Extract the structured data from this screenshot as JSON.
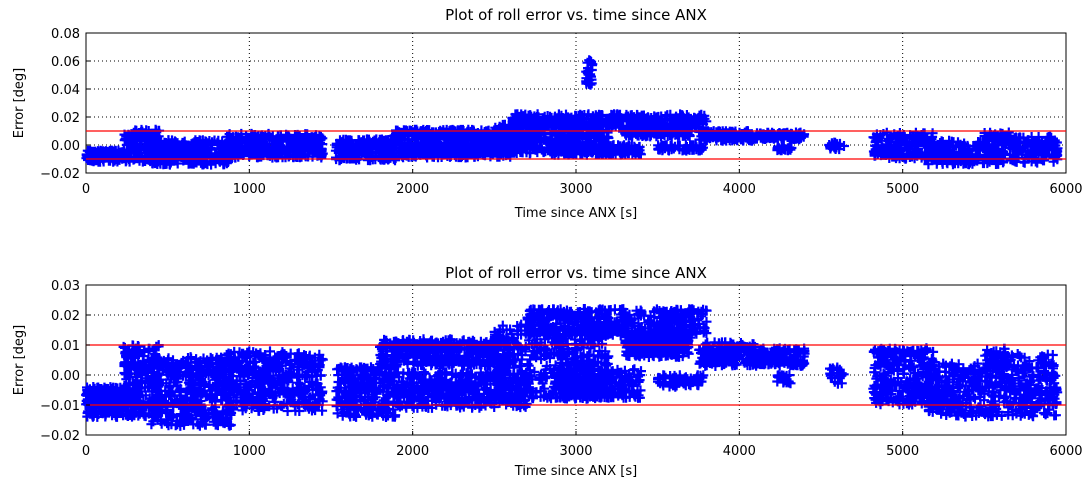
{
  "chart_data": [
    {
      "type": "scatter",
      "title": "Plot of roll error vs. time since ANX",
      "xlabel": "Time since ANX [s]",
      "ylabel": "Error [deg]",
      "xlim": [
        0,
        6000
      ],
      "ylim": [
        -0.02,
        0.08
      ],
      "xticks": [
        0,
        1000,
        2000,
        3000,
        4000,
        5000,
        6000
      ],
      "yticks": [
        -0.02,
        0.0,
        0.02,
        0.04,
        0.06,
        0.08
      ],
      "xtick_labels": [
        "0",
        "1000",
        "2000",
        "3000",
        "4000",
        "5000",
        "6000"
      ],
      "ytick_labels": [
        "−0.02",
        "0.00",
        "0.02",
        "0.04",
        "0.06",
        "0.08"
      ],
      "grid": "dotted",
      "threshold_lines": [
        0.01,
        -0.01
      ],
      "colors": {
        "series": "#0000ff",
        "threshold": "#ff0000",
        "grid": "#000000"
      },
      "marker": "plus",
      "clusters": [
        {
          "x0": 0,
          "x1": 250,
          "y0": -0.012,
          "y1": -0.004,
          "n": 160
        },
        {
          "x0": 230,
          "x1": 450,
          "y0": -0.012,
          "y1": 0.011,
          "n": 160
        },
        {
          "x0": 400,
          "x1": 900,
          "y0": -0.014,
          "y1": 0.004,
          "n": 320
        },
        {
          "x0": 850,
          "x1": 1450,
          "y0": -0.009,
          "y1": 0.008,
          "n": 340
        },
        {
          "x0": 1530,
          "x1": 1900,
          "y0": -0.011,
          "y1": 0.004,
          "n": 220
        },
        {
          "x0": 1880,
          "x1": 2600,
          "y0": 0.003,
          "y1": 0.011,
          "n": 320
        },
        {
          "x0": 1900,
          "x1": 2600,
          "y0": -0.009,
          "y1": 0.002,
          "n": 300
        },
        {
          "x0": 2500,
          "x1": 3200,
          "y0": -0.006,
          "y1": 0.015,
          "n": 360
        },
        {
          "x0": 2600,
          "x1": 3800,
          "y0": 0.012,
          "y1": 0.022,
          "n": 380
        },
        {
          "x0": 2850,
          "x1": 3400,
          "y0": -0.007,
          "y1": 0.0,
          "n": 200
        },
        {
          "x0": 3300,
          "x1": 3700,
          "y0": 0.006,
          "y1": 0.014,
          "n": 200
        },
        {
          "x0": 3500,
          "x1": 3780,
          "y0": -0.004,
          "y1": 0.0,
          "n": 60
        },
        {
          "x0": 3750,
          "x1": 4100,
          "y0": 0.003,
          "y1": 0.01,
          "n": 120
        },
        {
          "x0": 4100,
          "x1": 4400,
          "y0": 0.004,
          "y1": 0.009,
          "n": 100
        },
        {
          "x0": 4230,
          "x1": 4320,
          "y0": -0.004,
          "y1": -0.001,
          "n": 20
        },
        {
          "x0": 4550,
          "x1": 4650,
          "y0": -0.003,
          "y1": 0.002,
          "n": 20
        },
        {
          "x0": 4820,
          "x1": 5200,
          "y0": -0.01,
          "y1": 0.009,
          "n": 200
        },
        {
          "x0": 5150,
          "x1": 5600,
          "y0": -0.014,
          "y1": 0.003,
          "n": 200
        },
        {
          "x0": 5500,
          "x1": 5650,
          "y0": 0.002,
          "y1": 0.009,
          "n": 40
        },
        {
          "x0": 5600,
          "x1": 5950,
          "y0": -0.013,
          "y1": 0.006,
          "n": 160
        },
        {
          "x0": 3060,
          "x1": 3100,
          "y0": 0.043,
          "y1": 0.061,
          "n": 24
        }
      ]
    },
    {
      "type": "scatter",
      "title": "Plot of roll error vs. time since ANX",
      "xlabel": "Time since ANX [s]",
      "ylabel": "Error [deg]",
      "xlim": [
        0,
        6000
      ],
      "ylim": [
        -0.02,
        0.03
      ],
      "xticks": [
        0,
        1000,
        2000,
        3000,
        4000,
        5000,
        6000
      ],
      "yticks": [
        -0.02,
        -0.01,
        0.0,
        0.01,
        0.02,
        0.03
      ],
      "xtick_labels": [
        "0",
        "1000",
        "2000",
        "3000",
        "4000",
        "5000",
        "6000"
      ],
      "ytick_labels": [
        "−0.02",
        "−0.01",
        "0.00",
        "0.01",
        "0.02",
        "0.03"
      ],
      "grid": "dotted",
      "threshold_lines": [
        0.01,
        -0.01
      ],
      "colors": {
        "series": "#0000ff",
        "threshold": "#ff0000",
        "grid": "#000000"
      },
      "marker": "plus",
      "clusters": [
        {
          "x0": 0,
          "x1": 250,
          "y0": -0.014,
          "y1": -0.004,
          "n": 200
        },
        {
          "x0": 230,
          "x1": 450,
          "y0": -0.014,
          "y1": 0.01,
          "n": 220
        },
        {
          "x0": 400,
          "x1": 900,
          "y0": -0.017,
          "y1": 0.006,
          "n": 420
        },
        {
          "x0": 850,
          "x1": 1450,
          "y0": -0.012,
          "y1": 0.008,
          "n": 440
        },
        {
          "x0": 1530,
          "x1": 1900,
          "y0": -0.014,
          "y1": 0.003,
          "n": 280
        },
        {
          "x0": 1800,
          "x1": 2600,
          "y0": 0.003,
          "y1": 0.012,
          "n": 400
        },
        {
          "x0": 1900,
          "x1": 2700,
          "y0": -0.011,
          "y1": 0.001,
          "n": 420
        },
        {
          "x0": 2500,
          "x1": 3200,
          "y0": -0.008,
          "y1": 0.017,
          "n": 460
        },
        {
          "x0": 2700,
          "x1": 3800,
          "y0": 0.013,
          "y1": 0.022,
          "n": 460
        },
        {
          "x0": 2850,
          "x1": 3400,
          "y0": -0.008,
          "y1": 0.002,
          "n": 260
        },
        {
          "x0": 3300,
          "x1": 3700,
          "y0": 0.006,
          "y1": 0.014,
          "n": 240
        },
        {
          "x0": 3500,
          "x1": 3780,
          "y0": -0.004,
          "y1": 0.0,
          "n": 60
        },
        {
          "x0": 3750,
          "x1": 4100,
          "y0": 0.003,
          "y1": 0.011,
          "n": 160
        },
        {
          "x0": 4100,
          "x1": 4400,
          "y0": 0.003,
          "y1": 0.009,
          "n": 140
        },
        {
          "x0": 4230,
          "x1": 4320,
          "y0": -0.003,
          "y1": 0.0,
          "n": 20
        },
        {
          "x0": 4550,
          "x1": 4650,
          "y0": -0.003,
          "y1": 0.003,
          "n": 24
        },
        {
          "x0": 4820,
          "x1": 5200,
          "y0": -0.01,
          "y1": 0.009,
          "n": 280
        },
        {
          "x0": 5150,
          "x1": 5600,
          "y0": -0.014,
          "y1": 0.004,
          "n": 280
        },
        {
          "x0": 5500,
          "x1": 5650,
          "y0": 0.002,
          "y1": 0.009,
          "n": 50
        },
        {
          "x0": 5600,
          "x1": 5950,
          "y0": -0.014,
          "y1": 0.007,
          "n": 220
        }
      ]
    }
  ]
}
